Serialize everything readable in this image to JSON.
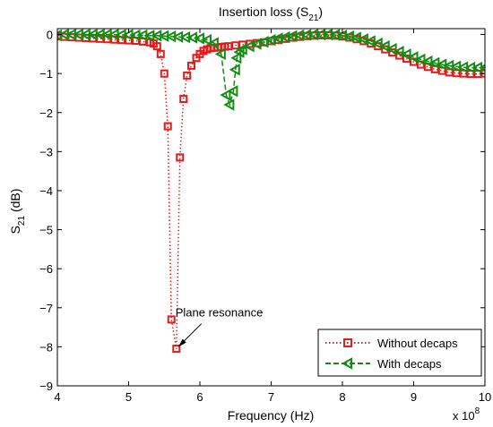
{
  "chart_data": {
    "type": "line",
    "title_main": "Insertion loss (S",
    "title_sub": "21",
    "title_end": ")",
    "xlabel": "Frequency (Hz)",
    "ylabel_main": "S",
    "ylabel_sub": "21",
    "ylabel_end": " (dB)",
    "x_multiplier_base": "x 10",
    "x_multiplier_exp": "8",
    "xlim": [
      4,
      10
    ],
    "ylim": [
      -9,
      0.15
    ],
    "x_ticks": [
      4,
      5,
      6,
      7,
      8,
      9,
      10
    ],
    "y_ticks": [
      0,
      -1,
      -2,
      -3,
      -4,
      -5,
      -6,
      -7,
      -8,
      -9
    ],
    "x_tick_labels": [
      "4",
      "5",
      "6",
      "7",
      "8",
      "9",
      "10"
    ],
    "y_tick_labels": [
      "0",
      "−1",
      "−2",
      "−3",
      "−4",
      "−5",
      "−6",
      "−7",
      "−8",
      "−9"
    ],
    "grid": false,
    "legend_position": "bottom-right",
    "series": [
      {
        "name": "Without decaps",
        "color": "#e8191b",
        "line_style": "dotted",
        "marker": "square",
        "points": [
          [
            4.0,
            -0.05
          ],
          [
            4.1,
            -0.06
          ],
          [
            4.2,
            -0.07
          ],
          [
            4.3,
            -0.08
          ],
          [
            4.4,
            -0.09
          ],
          [
            4.5,
            -0.1
          ],
          [
            4.6,
            -0.11
          ],
          [
            4.7,
            -0.12
          ],
          [
            4.8,
            -0.13
          ],
          [
            4.9,
            -0.14
          ],
          [
            5.0,
            -0.15
          ],
          [
            5.1,
            -0.16
          ],
          [
            5.2,
            -0.18
          ],
          [
            5.3,
            -0.2
          ],
          [
            5.35,
            -0.23
          ],
          [
            5.4,
            -0.3
          ],
          [
            5.45,
            -0.5
          ],
          [
            5.5,
            -1.0
          ],
          [
            5.55,
            -2.35
          ],
          [
            5.6,
            -7.3
          ],
          [
            5.67,
            -8.05
          ],
          [
            5.72,
            -3.15
          ],
          [
            5.77,
            -1.65
          ],
          [
            5.82,
            -1.05
          ],
          [
            5.88,
            -0.8
          ],
          [
            5.95,
            -0.6
          ],
          [
            6.0,
            -0.5
          ],
          [
            6.05,
            -0.42
          ],
          [
            6.1,
            -0.38
          ],
          [
            6.15,
            -0.35
          ],
          [
            6.2,
            -0.34
          ],
          [
            6.25,
            -0.33
          ],
          [
            6.3,
            -0.32
          ],
          [
            6.35,
            -0.31
          ],
          [
            6.4,
            -0.3
          ],
          [
            6.5,
            -0.28
          ],
          [
            6.6,
            -0.26
          ],
          [
            6.7,
            -0.24
          ],
          [
            6.8,
            -0.22
          ],
          [
            6.9,
            -0.2
          ],
          [
            7.0,
            -0.17
          ],
          [
            7.1,
            -0.14
          ],
          [
            7.2,
            -0.11
          ],
          [
            7.3,
            -0.08
          ],
          [
            7.4,
            -0.06
          ],
          [
            7.5,
            -0.04
          ],
          [
            7.6,
            -0.03
          ],
          [
            7.7,
            -0.02
          ],
          [
            7.8,
            -0.02
          ],
          [
            7.9,
            -0.03
          ],
          [
            8.0,
            -0.05
          ],
          [
            8.1,
            -0.08
          ],
          [
            8.2,
            -0.12
          ],
          [
            8.3,
            -0.17
          ],
          [
            8.4,
            -0.23
          ],
          [
            8.5,
            -0.3
          ],
          [
            8.6,
            -0.38
          ],
          [
            8.7,
            -0.46
          ],
          [
            8.8,
            -0.54
          ],
          [
            8.9,
            -0.62
          ],
          [
            9.0,
            -0.7
          ],
          [
            9.1,
            -0.77
          ],
          [
            9.2,
            -0.83
          ],
          [
            9.3,
            -0.89
          ],
          [
            9.4,
            -0.93
          ],
          [
            9.5,
            -0.97
          ],
          [
            9.6,
            -0.99
          ],
          [
            9.7,
            -1.0
          ],
          [
            9.8,
            -1.01
          ],
          [
            9.9,
            -1.01
          ],
          [
            10.0,
            -1.0
          ]
        ]
      },
      {
        "name": "With decaps",
        "color": "#128c12",
        "line_style": "dashed",
        "marker": "triangle-left",
        "points": [
          [
            4.0,
            -0.02
          ],
          [
            4.1,
            0.0
          ],
          [
            4.2,
            0.0
          ],
          [
            4.3,
            0.0
          ],
          [
            4.4,
            0.0
          ],
          [
            4.5,
            0.0
          ],
          [
            4.6,
            0.0
          ],
          [
            4.7,
            0.0
          ],
          [
            4.8,
            0.0
          ],
          [
            4.9,
            -0.01
          ],
          [
            5.0,
            -0.01
          ],
          [
            5.1,
            -0.02
          ],
          [
            5.2,
            -0.02
          ],
          [
            5.3,
            -0.03
          ],
          [
            5.4,
            -0.03
          ],
          [
            5.5,
            -0.04
          ],
          [
            5.6,
            -0.05
          ],
          [
            5.7,
            -0.06
          ],
          [
            5.8,
            -0.07
          ],
          [
            5.9,
            -0.08
          ],
          [
            6.0,
            -0.1
          ],
          [
            6.1,
            -0.14
          ],
          [
            6.2,
            -0.22
          ],
          [
            6.3,
            -0.5
          ],
          [
            6.37,
            -1.55
          ],
          [
            6.42,
            -1.8
          ],
          [
            6.47,
            -1.45
          ],
          [
            6.5,
            -0.9
          ],
          [
            6.52,
            -0.6
          ],
          [
            6.56,
            -0.45
          ],
          [
            6.6,
            -0.38
          ],
          [
            6.7,
            -0.3
          ],
          [
            6.8,
            -0.24
          ],
          [
            6.9,
            -0.19
          ],
          [
            7.0,
            -0.14
          ],
          [
            7.1,
            -0.1
          ],
          [
            7.2,
            -0.07
          ],
          [
            7.3,
            -0.04
          ],
          [
            7.4,
            -0.02
          ],
          [
            7.5,
            -0.01
          ],
          [
            7.6,
            0.0
          ],
          [
            7.7,
            0.0
          ],
          [
            7.8,
            0.0
          ],
          [
            7.9,
            -0.01
          ],
          [
            8.0,
            -0.03
          ],
          [
            8.1,
            -0.05
          ],
          [
            8.2,
            -0.08
          ],
          [
            8.3,
            -0.12
          ],
          [
            8.4,
            -0.17
          ],
          [
            8.5,
            -0.23
          ],
          [
            8.6,
            -0.3
          ],
          [
            8.7,
            -0.37
          ],
          [
            8.8,
            -0.44
          ],
          [
            8.9,
            -0.51
          ],
          [
            9.0,
            -0.58
          ],
          [
            9.1,
            -0.64
          ],
          [
            9.2,
            -0.69
          ],
          [
            9.3,
            -0.73
          ],
          [
            9.4,
            -0.77
          ],
          [
            9.5,
            -0.8
          ],
          [
            9.6,
            -0.82
          ],
          [
            9.7,
            -0.84
          ],
          [
            9.8,
            -0.85
          ],
          [
            9.9,
            -0.85
          ],
          [
            10.0,
            -0.85
          ]
        ]
      }
    ],
    "annotation": {
      "text": "Plane resonance",
      "target": [
        5.67,
        -8.05
      ]
    }
  }
}
